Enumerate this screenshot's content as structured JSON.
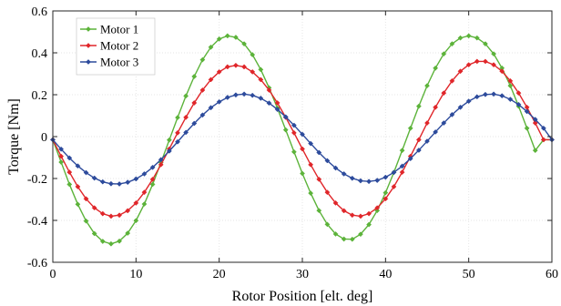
{
  "chart_data": {
    "type": "line",
    "title": "",
    "xlabel": "Rotor Position [elt. deg]",
    "ylabel": "Torque [Nm]",
    "xlim": [
      0,
      60
    ],
    "ylim": [
      -0.6,
      0.6
    ],
    "xticks": [
      0,
      10,
      20,
      30,
      40,
      50,
      60
    ],
    "yticks": [
      -0.6,
      -0.4,
      -0.2,
      0,
      0.2,
      0.4,
      0.6
    ],
    "xtick_labels": [
      "0",
      "10",
      "20",
      "30",
      "40",
      "50",
      "60"
    ],
    "ytick_labels": [
      "-0.6",
      "-0.4",
      "-0.2",
      "0",
      "0.2",
      "0.4",
      "0.6"
    ],
    "grid": true,
    "legend_position": "top-left",
    "x": [
      0,
      1,
      2,
      3,
      4,
      5,
      6,
      7,
      8,
      9,
      10,
      11,
      12,
      13,
      14,
      15,
      16,
      17,
      18,
      19,
      20,
      21,
      22,
      23,
      24,
      25,
      26,
      27,
      28,
      29,
      30,
      31,
      32,
      33,
      34,
      35,
      36,
      37,
      38,
      39,
      40,
      41,
      42,
      43,
      44,
      45,
      46,
      47,
      48,
      49,
      50,
      51,
      52,
      53,
      54,
      55,
      56,
      57,
      58,
      59,
      60
    ],
    "series": [
      {
        "name": "Motor 1",
        "color": "#5cb33a",
        "marker": "diamond",
        "values": [
          -0.015,
          -0.122,
          -0.228,
          -0.323,
          -0.403,
          -0.463,
          -0.5,
          -0.512,
          -0.499,
          -0.461,
          -0.401,
          -0.322,
          -0.228,
          -0.124,
          -0.016,
          0.091,
          0.194,
          0.287,
          0.367,
          0.427,
          0.466,
          0.481,
          0.474,
          0.443,
          0.391,
          0.32,
          0.233,
          0.136,
          0.032,
          -0.073,
          -0.176,
          -0.27,
          -0.353,
          -0.419,
          -0.465,
          -0.489,
          -0.49,
          -0.466,
          -0.42,
          -0.353,
          -0.268,
          -0.171,
          -0.066,
          0.04,
          0.145,
          0.243,
          0.327,
          0.395,
          0.443,
          0.471,
          0.481,
          0.471,
          0.443,
          0.395,
          0.327,
          0.243,
          0.145,
          0.04,
          -0.066,
          -0.015,
          -0.015
        ]
      },
      {
        "name": "Motor 2",
        "color": "#e0262a",
        "marker": "diamond",
        "values": [
          -0.015,
          -0.094,
          -0.17,
          -0.239,
          -0.297,
          -0.34,
          -0.368,
          -0.38,
          -0.375,
          -0.354,
          -0.317,
          -0.266,
          -0.204,
          -0.134,
          -0.059,
          0.018,
          0.092,
          0.161,
          0.222,
          0.272,
          0.309,
          0.333,
          0.34,
          0.333,
          0.309,
          0.272,
          0.222,
          0.161,
          0.092,
          0.018,
          -0.059,
          -0.134,
          -0.204,
          -0.266,
          -0.317,
          -0.354,
          -0.375,
          -0.38,
          -0.368,
          -0.34,
          -0.297,
          -0.239,
          -0.17,
          -0.094,
          -0.015,
          0.065,
          0.14,
          0.208,
          0.266,
          0.312,
          0.343,
          0.359,
          0.359,
          0.343,
          0.312,
          0.266,
          0.208,
          0.14,
          0.065,
          -0.015,
          -0.015
        ]
      },
      {
        "name": "Motor 3",
        "color": "#2d4b9c",
        "marker": "diamond",
        "values": [
          -0.015,
          -0.06,
          -0.102,
          -0.14,
          -0.172,
          -0.198,
          -0.216,
          -0.225,
          -0.226,
          -0.218,
          -0.202,
          -0.178,
          -0.147,
          -0.11,
          -0.069,
          -0.025,
          0.02,
          0.063,
          0.103,
          0.138,
          0.166,
          0.187,
          0.199,
          0.203,
          0.197,
          0.183,
          0.16,
          0.13,
          0.094,
          0.054,
          0.011,
          -0.033,
          -0.076,
          -0.115,
          -0.15,
          -0.178,
          -0.199,
          -0.211,
          -0.214,
          -0.209,
          -0.194,
          -0.171,
          -0.141,
          -0.105,
          -0.065,
          -0.022,
          0.022,
          0.065,
          0.105,
          0.14,
          0.169,
          0.19,
          0.201,
          0.203,
          0.195,
          0.178,
          0.153,
          0.12,
          0.082,
          0.04,
          -0.015
        ]
      }
    ]
  }
}
